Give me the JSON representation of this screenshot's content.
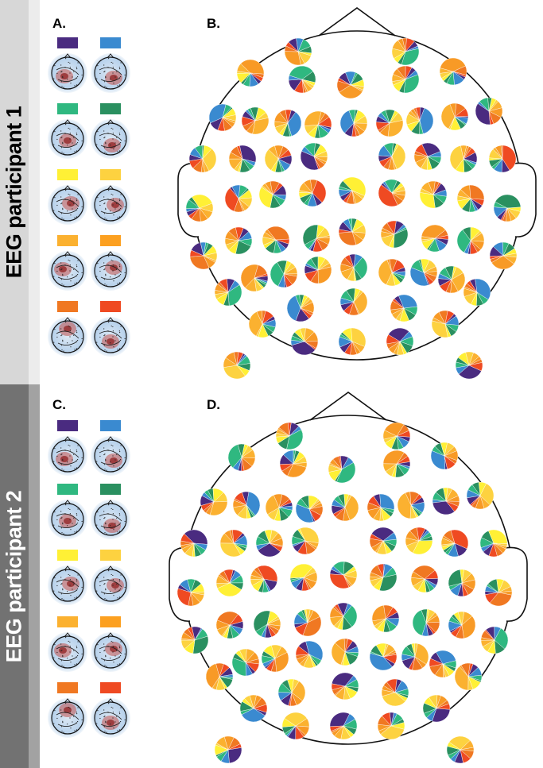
{
  "sidebars": [
    {
      "label": "EEG participant 1"
    },
    {
      "label": "EEG participant 2"
    }
  ],
  "panels": {
    "a": "A.",
    "b": "B.",
    "c": "C.",
    "d": "D."
  },
  "component_colors": [
    "#4a2b80",
    "#3a8ad0",
    "#2fb880",
    "#2a9060",
    "#fff035",
    "#fdd240",
    "#fbb130",
    "#fca020",
    "#f07822",
    "#ef4a22"
  ],
  "pie_palette": [
    "#4a2b80",
    "#3a8ad0",
    "#2fb880",
    "#2a9060",
    "#fff035",
    "#fdd240",
    "#fbb130",
    "#f89a26",
    "#f07822",
    "#ef4a22"
  ]
}
